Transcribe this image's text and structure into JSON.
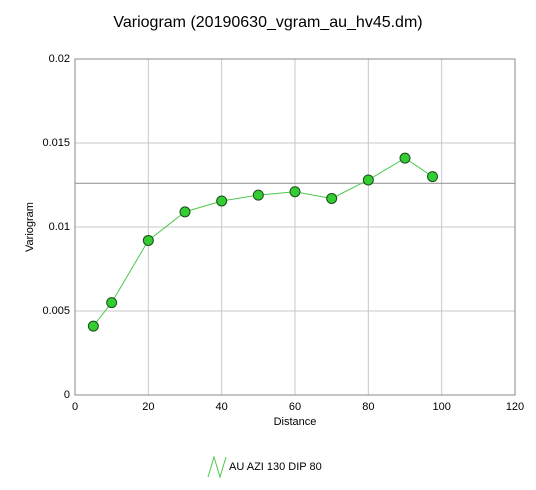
{
  "chart_data": {
    "type": "line",
    "title": "Variogram (20190630_vgram_au_hv45.dm)",
    "x_label": "Distance",
    "y_label": "Variogram",
    "x": [
      5,
      10,
      20,
      30,
      40,
      50,
      60,
      70,
      80,
      90,
      97.5
    ],
    "series": [
      {
        "name": "AU AZI 130 DIP 80",
        "color": "#4cc94c",
        "marker_color": "#33cc33",
        "values": [
          0.0041,
          0.0055,
          0.0092,
          0.0109,
          0.01155,
          0.0119,
          0.0121,
          0.0117,
          0.0128,
          0.0141,
          0.013
        ]
      }
    ],
    "sill": 0.0126,
    "sill_color": "#999999",
    "xlim": [
      0,
      120
    ],
    "xticks": [
      0,
      20,
      40,
      60,
      80,
      100,
      120
    ],
    "ylim": [
      0,
      0.02
    ],
    "yticks": [
      0,
      0.005,
      0.01,
      0.015,
      0.02
    ],
    "grid": true,
    "legend": "bottom"
  }
}
